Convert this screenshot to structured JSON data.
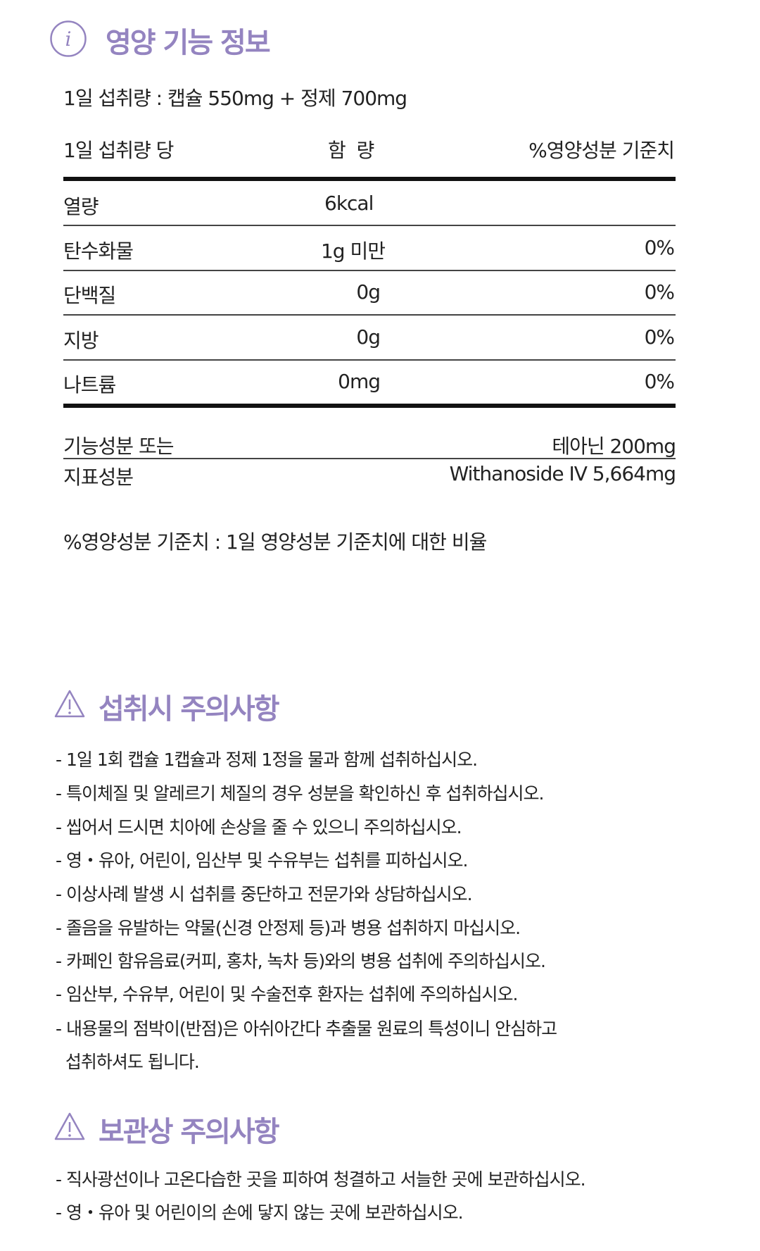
{
  "accent_color": "#9484c0",
  "nutrition": {
    "title": "영양 기능 정보",
    "icon": "info-icon",
    "daily_intake": "1일 섭취량 : 캡슐 550mg + 정제 700mg",
    "headers": [
      "1일 섭취량 당",
      "함  량",
      "%영양성분 기준치"
    ],
    "rows": [
      {
        "name": "열량",
        "amount": "6kcal",
        "percent": ""
      },
      {
        "name": "탄수화물",
        "amount": "1g 미만",
        "percent": "0%"
      },
      {
        "name": "단백질",
        "amount": "0g",
        "percent": "0%"
      },
      {
        "name": "지방",
        "amount": "0g",
        "percent": "0%"
      },
      {
        "name": "나트륨",
        "amount": "0mg",
        "percent": "0%"
      }
    ],
    "functional_label_1": "기능성분 또는",
    "functional_label_2": "지표성분",
    "functional_value_1": "테아닌 200mg",
    "functional_value_2": "Withanoside IV 5,664mg",
    "footnote": "%영양성분 기준치 : 1일 영양성분 기준치에 대한 비율"
  },
  "intake_caution": {
    "title": "섭취시 주의사항",
    "icon": "warning-icon",
    "items": [
      "- 1일 1회 캡슐 1캡슐과 정제 1정을 물과 함께 섭취하십시오.",
      "- 특이체질 및 알레르기 체질의 경우 성분을 확인하신 후 섭취하십시오.",
      "- 씹어서 드시면 치아에 손상을 줄 수 있으니 주의하십시오.",
      "- 영・유아, 어린이, 임산부 및 수유부는 섭취를 피하십시오.",
      "- 이상사례 발생 시 섭취를 중단하고 전문가와 상담하십시오.",
      "- 졸음을 유발하는 약물(신경 안정제 등)과 병용 섭취하지 마십시오.",
      "- 카페인 함유음료(커피, 홍차, 녹차 등)와의 병용 섭취에 주의하십시오.",
      "- 임산부, 수유부, 어린이 및 수술전후 환자는 섭취에 주의하십시오.",
      "- 내용물의 점박이(반점)은 아쉬아간다 추출물 원료의 특성이니 안심하고",
      "  섭취하셔도 됩니다."
    ]
  },
  "storage_caution": {
    "title": "보관상 주의사항",
    "icon": "warning-icon",
    "items": [
      "- 직사광선이나 고온다습한 곳을 피하여 청결하고 서늘한 곳에 보관하십시오.",
      "- 영・유아 및 어린이의 손에 닿지 않는 곳에 보관하십시오."
    ]
  }
}
